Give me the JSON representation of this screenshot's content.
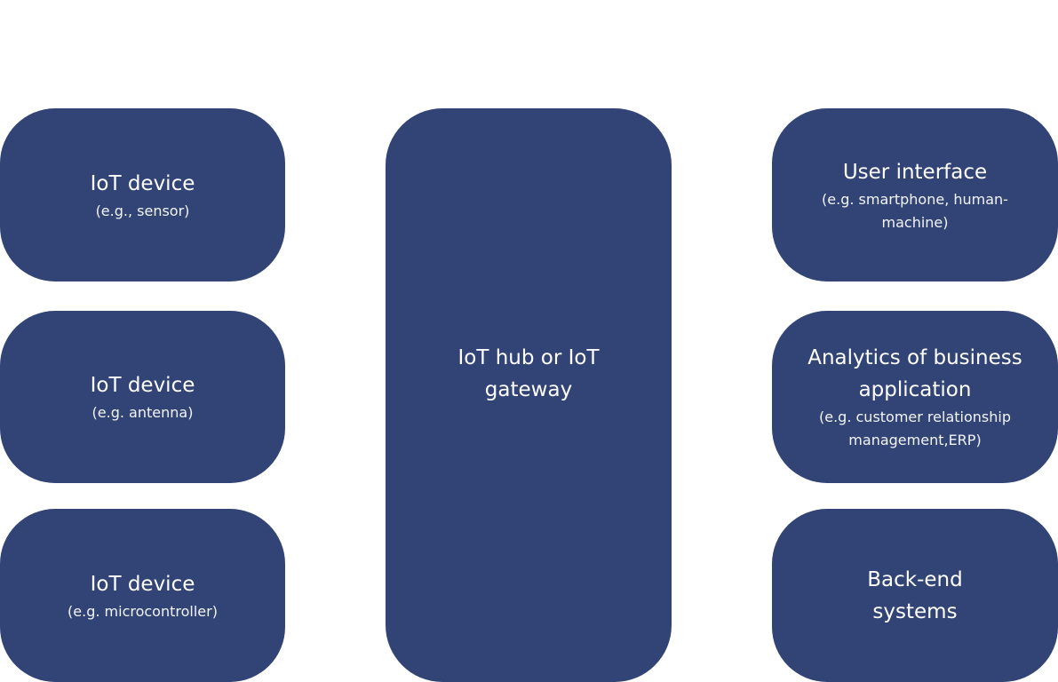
{
  "colors": {
    "node_fill": "#324475",
    "text": "#ffffff",
    "background": "#ffffff"
  },
  "nodes": [
    {
      "id": "iot-device-sensor",
      "title": "IoT device",
      "subtitle": "(e.g., sensor)"
    },
    {
      "id": "iot-device-antenna",
      "title": "IoT device",
      "subtitle": "(e.g. antenna)"
    },
    {
      "id": "iot-device-microcontroller",
      "title": "IoT device",
      "subtitle": "(e.g. microcontroller)"
    },
    {
      "id": "iot-hub",
      "title": "IoT hub or IoT gateway",
      "subtitle": ""
    },
    {
      "id": "user-interface",
      "title": "User interface",
      "subtitle": "(e.g. smartphone, human-machine)"
    },
    {
      "id": "analytics",
      "title": "Analytics of business application",
      "subtitle": "(e.g. customer relationship management,ERP)"
    },
    {
      "id": "back-end",
      "title": "Back-end systems",
      "subtitle": ""
    }
  ]
}
